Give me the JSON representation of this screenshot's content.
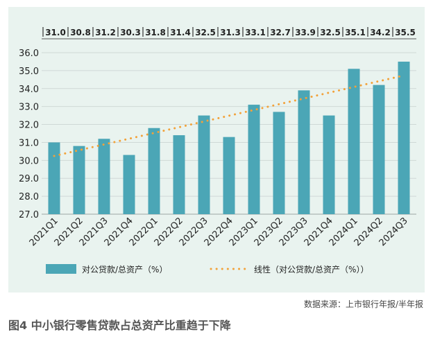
{
  "chart_data": {
    "type": "bar",
    "categories": [
      "2021Q1",
      "2021Q2",
      "2021Q3",
      "2021Q4",
      "2022Q1",
      "2022Q2",
      "2022Q3",
      "2022Q4",
      "2023Q1",
      "2023Q2",
      "2023Q3",
      "2021Q4",
      "2024Q1",
      "2024Q2",
      "2024Q3"
    ],
    "series": [
      {
        "name": "对公贷款/总资产（%）",
        "values": [
          31.0,
          30.8,
          31.2,
          30.3,
          31.8,
          31.4,
          32.5,
          31.3,
          33.1,
          32.7,
          33.9,
          32.5,
          35.1,
          34.2,
          35.5
        ],
        "color": "#4ba6b6"
      },
      {
        "name": "线性（对公贷款/总资产（%））",
        "type": "trendline",
        "color": "#f2a23a"
      }
    ],
    "value_labels": [
      "31.0",
      "30.8",
      "31.2",
      "30.3",
      "31.8",
      "31.4",
      "32.5",
      "31.3",
      "33.1",
      "32.7",
      "33.9",
      "32.5",
      "35.1",
      "34.2",
      "35.5"
    ],
    "y_ticks": [
      "27.0",
      "28.0",
      "29.0",
      "30.0",
      "31.0",
      "32.0",
      "33.0",
      "34.0",
      "35.0",
      "36.0"
    ],
    "ylim": [
      27,
      36
    ],
    "grid": true,
    "legend": "bottom",
    "title": "",
    "xlabel": "",
    "ylabel": ""
  },
  "source_note": "数据来源：上市银行年报/半年报",
  "figure_title": "图4  中小银行零售贷款占总资产比重趋于下降"
}
